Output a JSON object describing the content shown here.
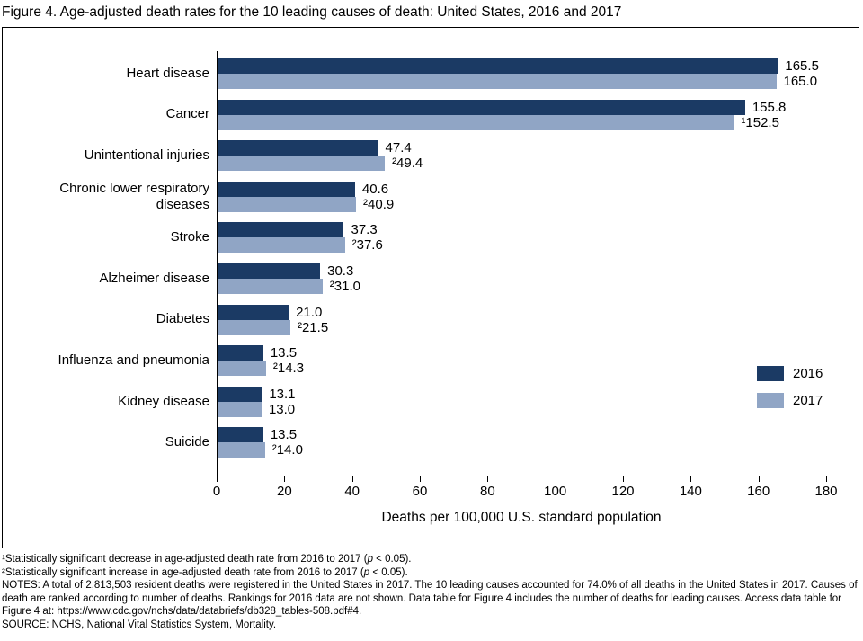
{
  "figure": {
    "title": "Figure 4. Age-adjusted death rates for the 10 leading causes of death: United States, 2016 and 2017"
  },
  "chart_data": {
    "type": "bar",
    "orientation": "horizontal",
    "title": "Figure 4. Age-adjusted death rates for the 10 leading causes of death: United States, 2016 and 2017",
    "categories": [
      "Heart disease",
      "Cancer",
      "Unintentional injuries",
      "Chronic lower respiratory diseases",
      "Stroke",
      "Alzheimer disease",
      "Diabetes",
      "Influenza and pneumonia",
      "Kidney disease",
      "Suicide"
    ],
    "series": [
      {
        "name": "2016",
        "color": "#1b3a64",
        "values": [
          165.5,
          155.8,
          47.4,
          40.6,
          37.3,
          30.3,
          21.0,
          13.5,
          13.1,
          13.5
        ],
        "labels": [
          "165.5",
          "155.8",
          "47.4",
          "40.6",
          "37.3",
          "30.3",
          "21.0",
          "13.5",
          "13.1",
          "13.5"
        ]
      },
      {
        "name": "2017",
        "color": "#90a5c5",
        "values": [
          165.0,
          152.5,
          49.4,
          40.9,
          37.6,
          31.0,
          21.5,
          14.3,
          13.0,
          14.0
        ],
        "labels": [
          "165.0",
          "¹152.5",
          "²49.4",
          "²40.9",
          "²37.6",
          "²31.0",
          "²21.5",
          "²14.3",
          "13.0",
          "²14.0"
        ]
      }
    ],
    "xlabel": "Deaths per 100,000 U.S. standard population",
    "xlim": [
      0,
      180
    ],
    "xticks": [
      0,
      20,
      40,
      60,
      80,
      100,
      120,
      140,
      160,
      180
    ],
    "grid": false,
    "legend_position": "right-inside"
  },
  "footnotes": [
    {
      "segments": [
        {
          "text": "¹Statistically significant decrease in age-adjusted death rate from 2016 to 2017 ("
        },
        {
          "text": "p",
          "italic": true
        },
        {
          "text": " < 0.05)."
        }
      ]
    },
    {
      "segments": [
        {
          "text": "²Statistically significant increase in age-adjusted death rate from 2016 to 2017 ("
        },
        {
          "text": "p",
          "italic": true
        },
        {
          "text": " < 0.05)."
        }
      ]
    },
    {
      "segments": [
        {
          "text": "NOTES: A total of 2,813,503 resident deaths were registered in the United States in 2017. The 10 leading causes accounted for 74.0% of all deaths in the United States in 2017. Causes of death are ranked according to number of deaths. Rankings for 2016 data are not shown. Data table for Figure 4 includes the number of deaths for leading causes. Access data table for Figure 4 at: https://www.cdc.gov/nchs/data/databriefs/db328_tables-508.pdf#4."
        }
      ]
    },
    {
      "segments": [
        {
          "text": "SOURCE: NCHS, National Vital Statistics System, Mortality."
        }
      ]
    }
  ]
}
